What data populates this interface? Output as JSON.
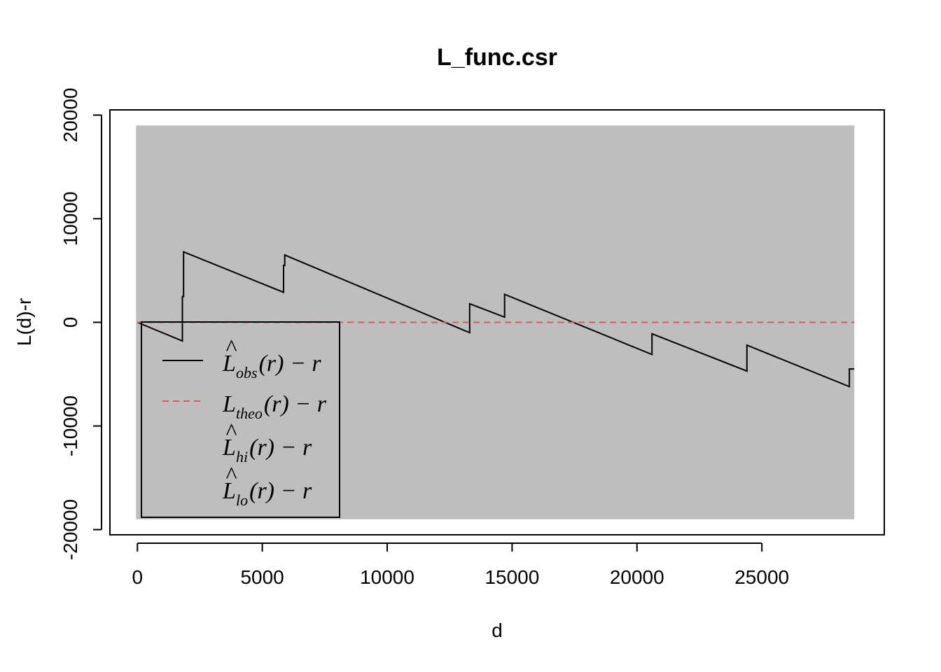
{
  "chart_data": {
    "type": "line",
    "title": "L_func.csr",
    "xlabel": "d",
    "ylabel": "L(d)-r",
    "xlim": [
      -1100,
      29900
    ],
    "ylim": [
      -20500,
      20500
    ],
    "x_ticks": [
      0,
      5000,
      10000,
      15000,
      20000,
      25000
    ],
    "x_tick_labels": [
      "0",
      "5000",
      "10000",
      "15000",
      "20000",
      "25000"
    ],
    "y_ticks": [
      -20000,
      -10000,
      0,
      10000,
      20000
    ],
    "y_tick_labels": [
      "-20000",
      "-10000",
      "0",
      "10000",
      "20000"
    ],
    "envelope": {
      "color": "#bebebe",
      "x_range": [
        0,
        28700
      ],
      "hi": 19000,
      "lo": -19000
    },
    "series": [
      {
        "key": "obs",
        "color": "#000000",
        "dash": "solid",
        "x": [
          0,
          1800,
          1800,
          1850,
          1850,
          5850,
          5850,
          5900,
          5900,
          13300,
          13300,
          14700,
          14700,
          20600,
          20600,
          24400,
          24400,
          28500,
          28500,
          28700
        ],
        "y": [
          0,
          -1800,
          2500,
          2500,
          6800,
          2900,
          5500,
          5500,
          6500,
          -1000,
          1800,
          500,
          2700,
          -3100,
          -1100,
          -4700,
          -2200,
          -6200,
          -4500,
          -4500
        ]
      },
      {
        "key": "theo",
        "color": "#DF536B",
        "dash": "dashed",
        "x": [
          0,
          28700
        ],
        "y": [
          0,
          0
        ]
      }
    ],
    "legend": {
      "position": "bottom-left",
      "entries": [
        {
          "key": "obs",
          "base": "L",
          "hat": "^",
          "sub": "obs",
          "tail": "(r) − r",
          "line": "solid",
          "color": "#000000"
        },
        {
          "key": "theo",
          "base": "L",
          "hat": "",
          "sub": "theo",
          "tail": "(r) − r",
          "line": "dashed",
          "color": "#DF536B"
        },
        {
          "key": "hi",
          "base": "L",
          "hat": "^",
          "sub": "hi",
          "tail": "(r) − r",
          "line": "none",
          "color": ""
        },
        {
          "key": "lo",
          "base": "L",
          "hat": "^",
          "sub": "lo",
          "tail": "(r) − r",
          "line": "none",
          "color": ""
        }
      ]
    }
  }
}
